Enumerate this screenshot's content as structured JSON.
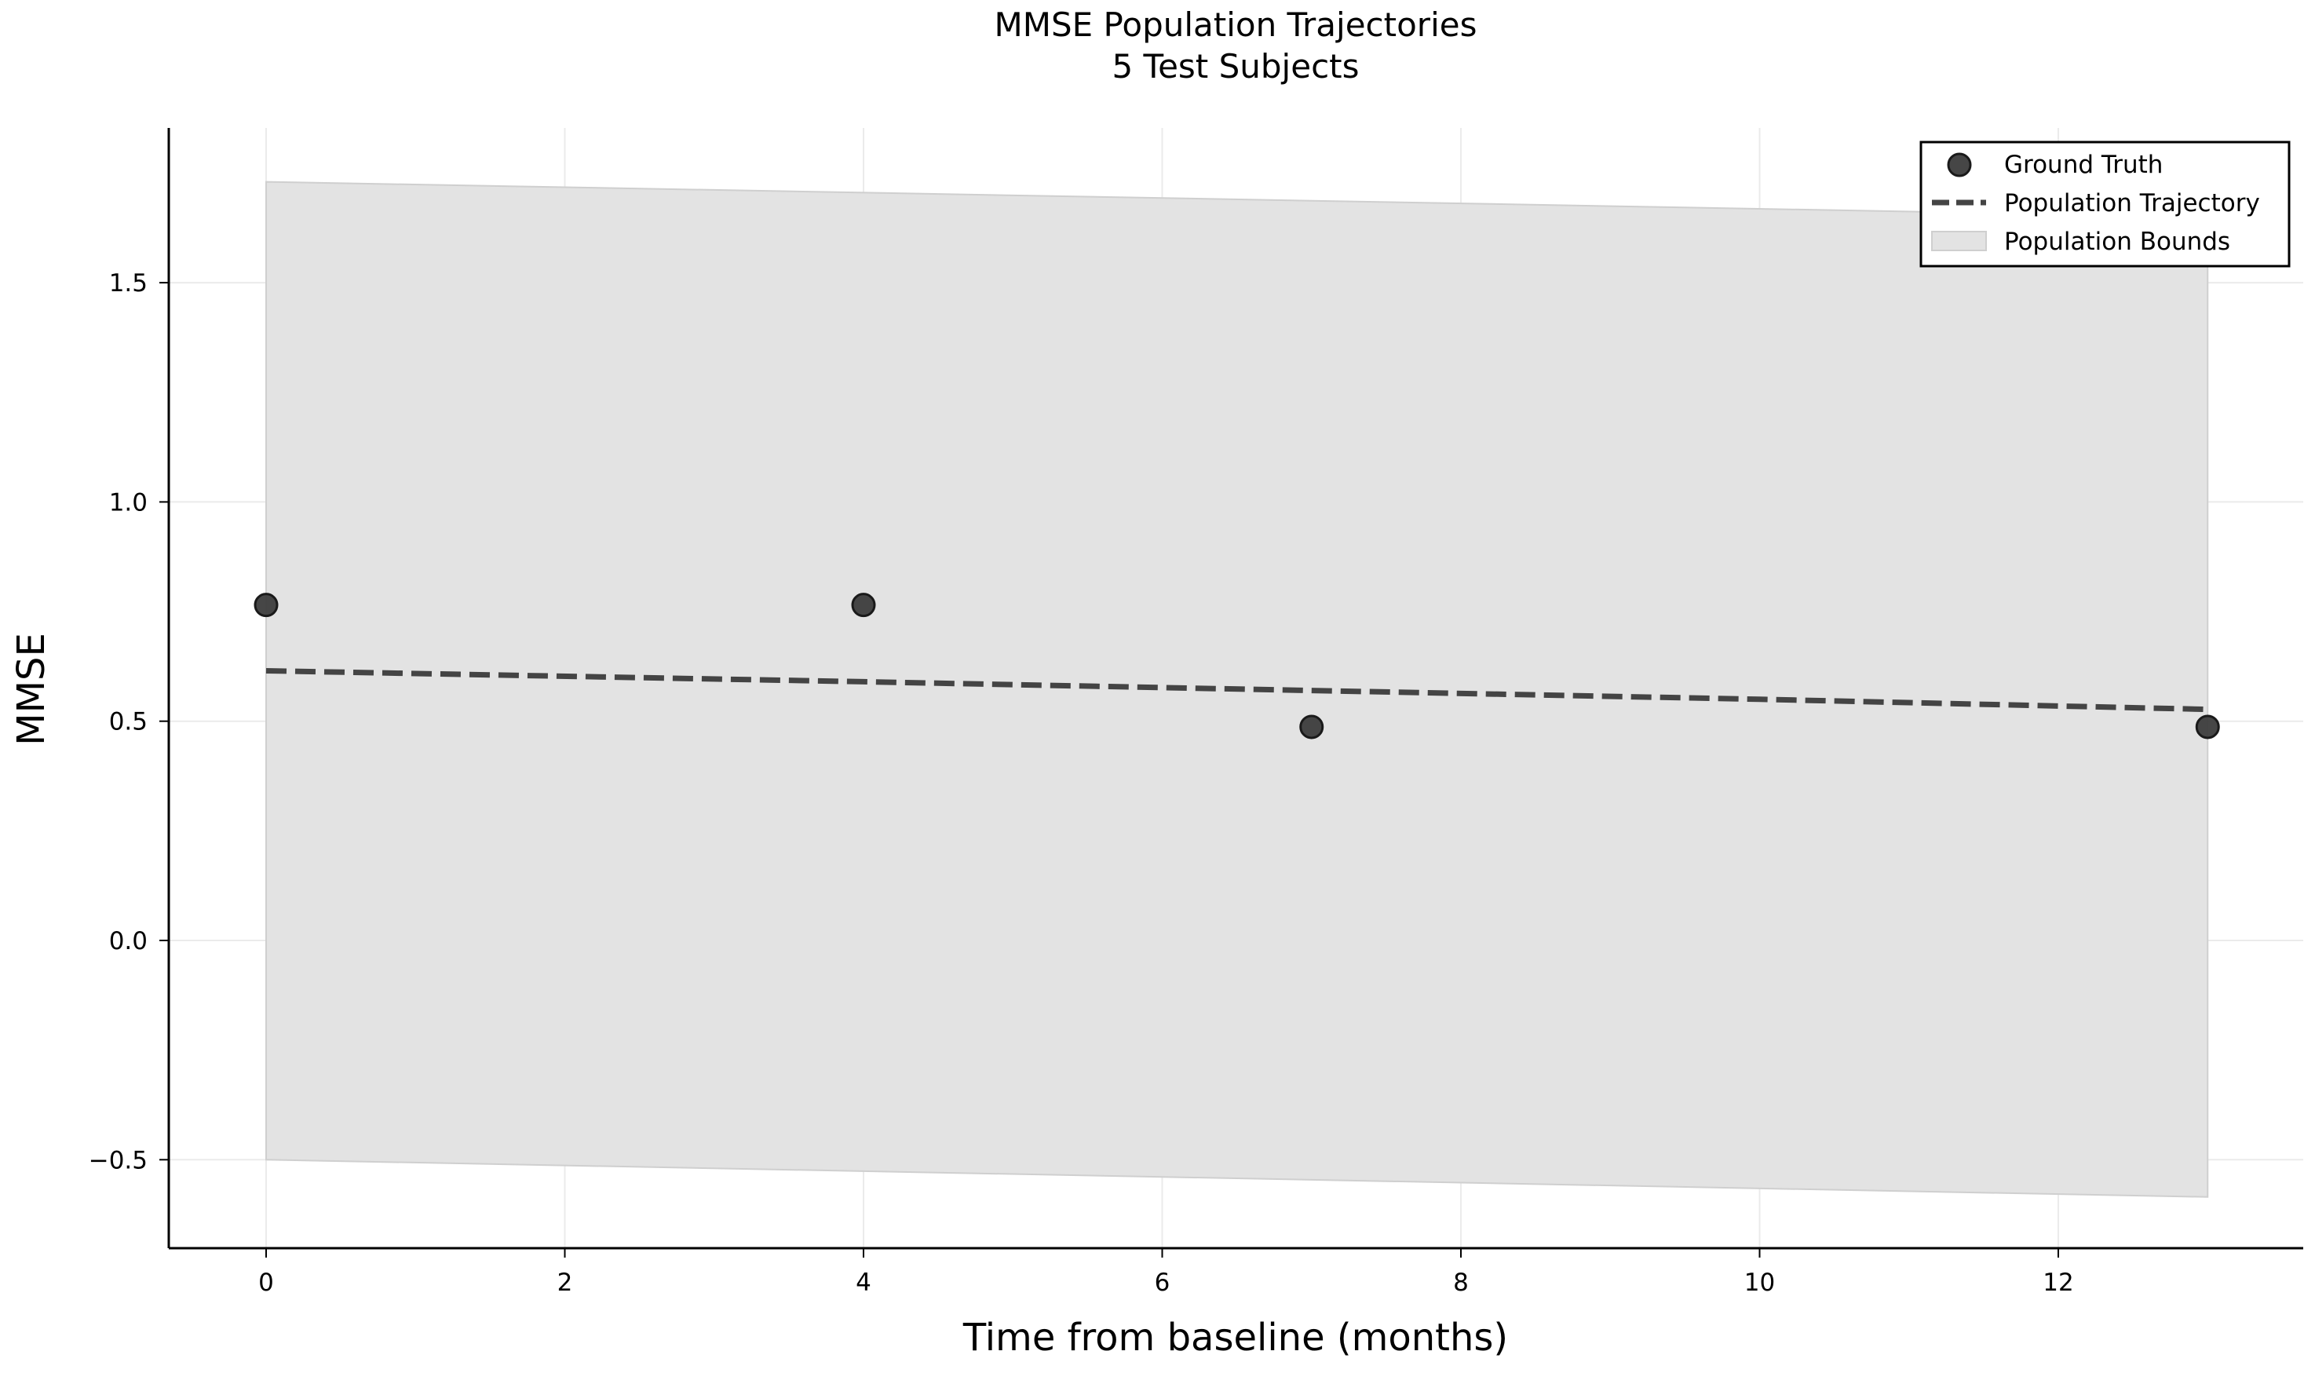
{
  "chart_data": {
    "type": "scatter",
    "title": "MMSE Population Trajectories",
    "subtitle": "5 Test Subjects",
    "xlabel": "Time from baseline (months)",
    "ylabel": "MMSE",
    "xlim": [
      -0.65,
      13.65
    ],
    "ylim": [
      -0.7,
      1.85
    ],
    "x_ticks": [
      0,
      2,
      4,
      6,
      8,
      10,
      12
    ],
    "x_tick_labels": [
      "0",
      "2",
      "4",
      "6",
      "8",
      "10",
      "12"
    ],
    "y_ticks": [
      -0.5,
      0.0,
      0.5,
      1.0,
      1.5
    ],
    "y_tick_labels": [
      "−0.5",
      "0.0",
      "0.5",
      "1.0",
      "1.5"
    ],
    "grid": true,
    "legend_position": "top-right",
    "series": [
      {
        "name": "Ground Truth",
        "kind": "scatter",
        "color": "#3c3c3c",
        "x": [
          0,
          4,
          7,
          13
        ],
        "y": [
          0.765,
          0.765,
          0.487,
          0.487
        ]
      },
      {
        "name": "Population Trajectory",
        "kind": "line",
        "style": "dashed",
        "color": "#444444",
        "x": [
          0,
          4,
          7,
          10,
          13
        ],
        "y": [
          0.615,
          0.59,
          0.57,
          0.55,
          0.527
        ]
      },
      {
        "name": "Population Bounds",
        "kind": "band",
        "color": "#e3e3e3",
        "x": [
          0,
          13
        ],
        "upper": [
          1.73,
          1.65
        ],
        "lower": [
          -0.5,
          -0.585
        ]
      }
    ]
  }
}
